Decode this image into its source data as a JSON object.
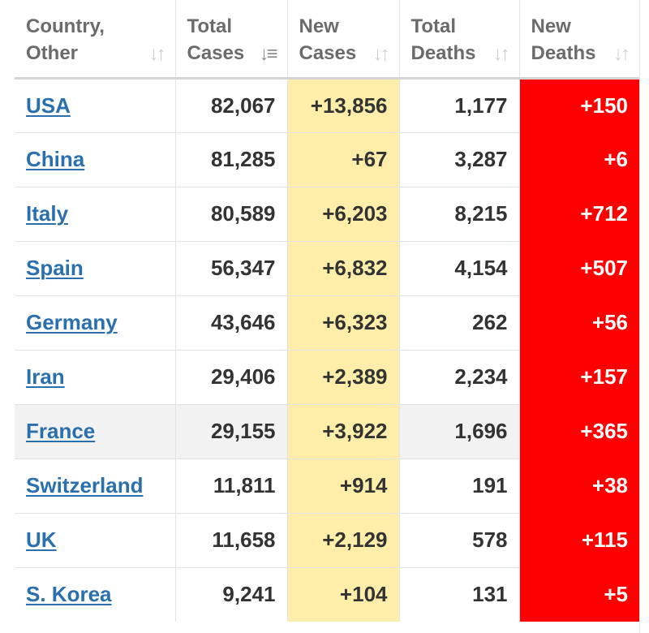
{
  "colors": {
    "link": "#2a6fae",
    "new_cases_bg": "#ffeeaa",
    "new_deaths_bg": "#ff0000",
    "header_text": "#6b6b6b",
    "highlight_row": "#f2f2f2"
  },
  "table": {
    "headers": [
      {
        "line1": "Country,",
        "line2": "Other",
        "sort_icon": "sort-icon"
      },
      {
        "line1": "Total",
        "line2": "Cases",
        "sort_icon": "sort-desc-icon"
      },
      {
        "line1": "New",
        "line2": "Cases",
        "sort_icon": "sort-icon"
      },
      {
        "line1": "Total",
        "line2": "Deaths",
        "sort_icon": "sort-icon"
      },
      {
        "line1": "New",
        "line2": "Deaths",
        "sort_icon": "sort-icon"
      }
    ],
    "rows": [
      {
        "country": "USA",
        "total_cases": "82,067",
        "new_cases": "+13,856",
        "total_deaths": "1,177",
        "new_deaths": "+150"
      },
      {
        "country": "China",
        "total_cases": "81,285",
        "new_cases": "+67",
        "total_deaths": "3,287",
        "new_deaths": "+6"
      },
      {
        "country": "Italy",
        "total_cases": "80,589",
        "new_cases": "+6,203",
        "total_deaths": "8,215",
        "new_deaths": "+712"
      },
      {
        "country": "Spain",
        "total_cases": "56,347",
        "new_cases": "+6,832",
        "total_deaths": "4,154",
        "new_deaths": "+507"
      },
      {
        "country": "Germany",
        "total_cases": "43,646",
        "new_cases": "+6,323",
        "total_deaths": "262",
        "new_deaths": "+56"
      },
      {
        "country": "Iran",
        "total_cases": "29,406",
        "new_cases": "+2,389",
        "total_deaths": "2,234",
        "new_deaths": "+157"
      },
      {
        "country": "France",
        "total_cases": "29,155",
        "new_cases": "+3,922",
        "total_deaths": "1,696",
        "new_deaths": "+365",
        "highlighted": true
      },
      {
        "country": "Switzerland",
        "total_cases": "11,811",
        "new_cases": "+914",
        "total_deaths": "191",
        "new_deaths": "+38"
      },
      {
        "country": "UK",
        "total_cases": "11,658",
        "new_cases": "+2,129",
        "total_deaths": "578",
        "new_deaths": "+115"
      },
      {
        "country": "S. Korea",
        "total_cases": "9,241",
        "new_cases": "+104",
        "total_deaths": "131",
        "new_deaths": "+5"
      }
    ]
  }
}
